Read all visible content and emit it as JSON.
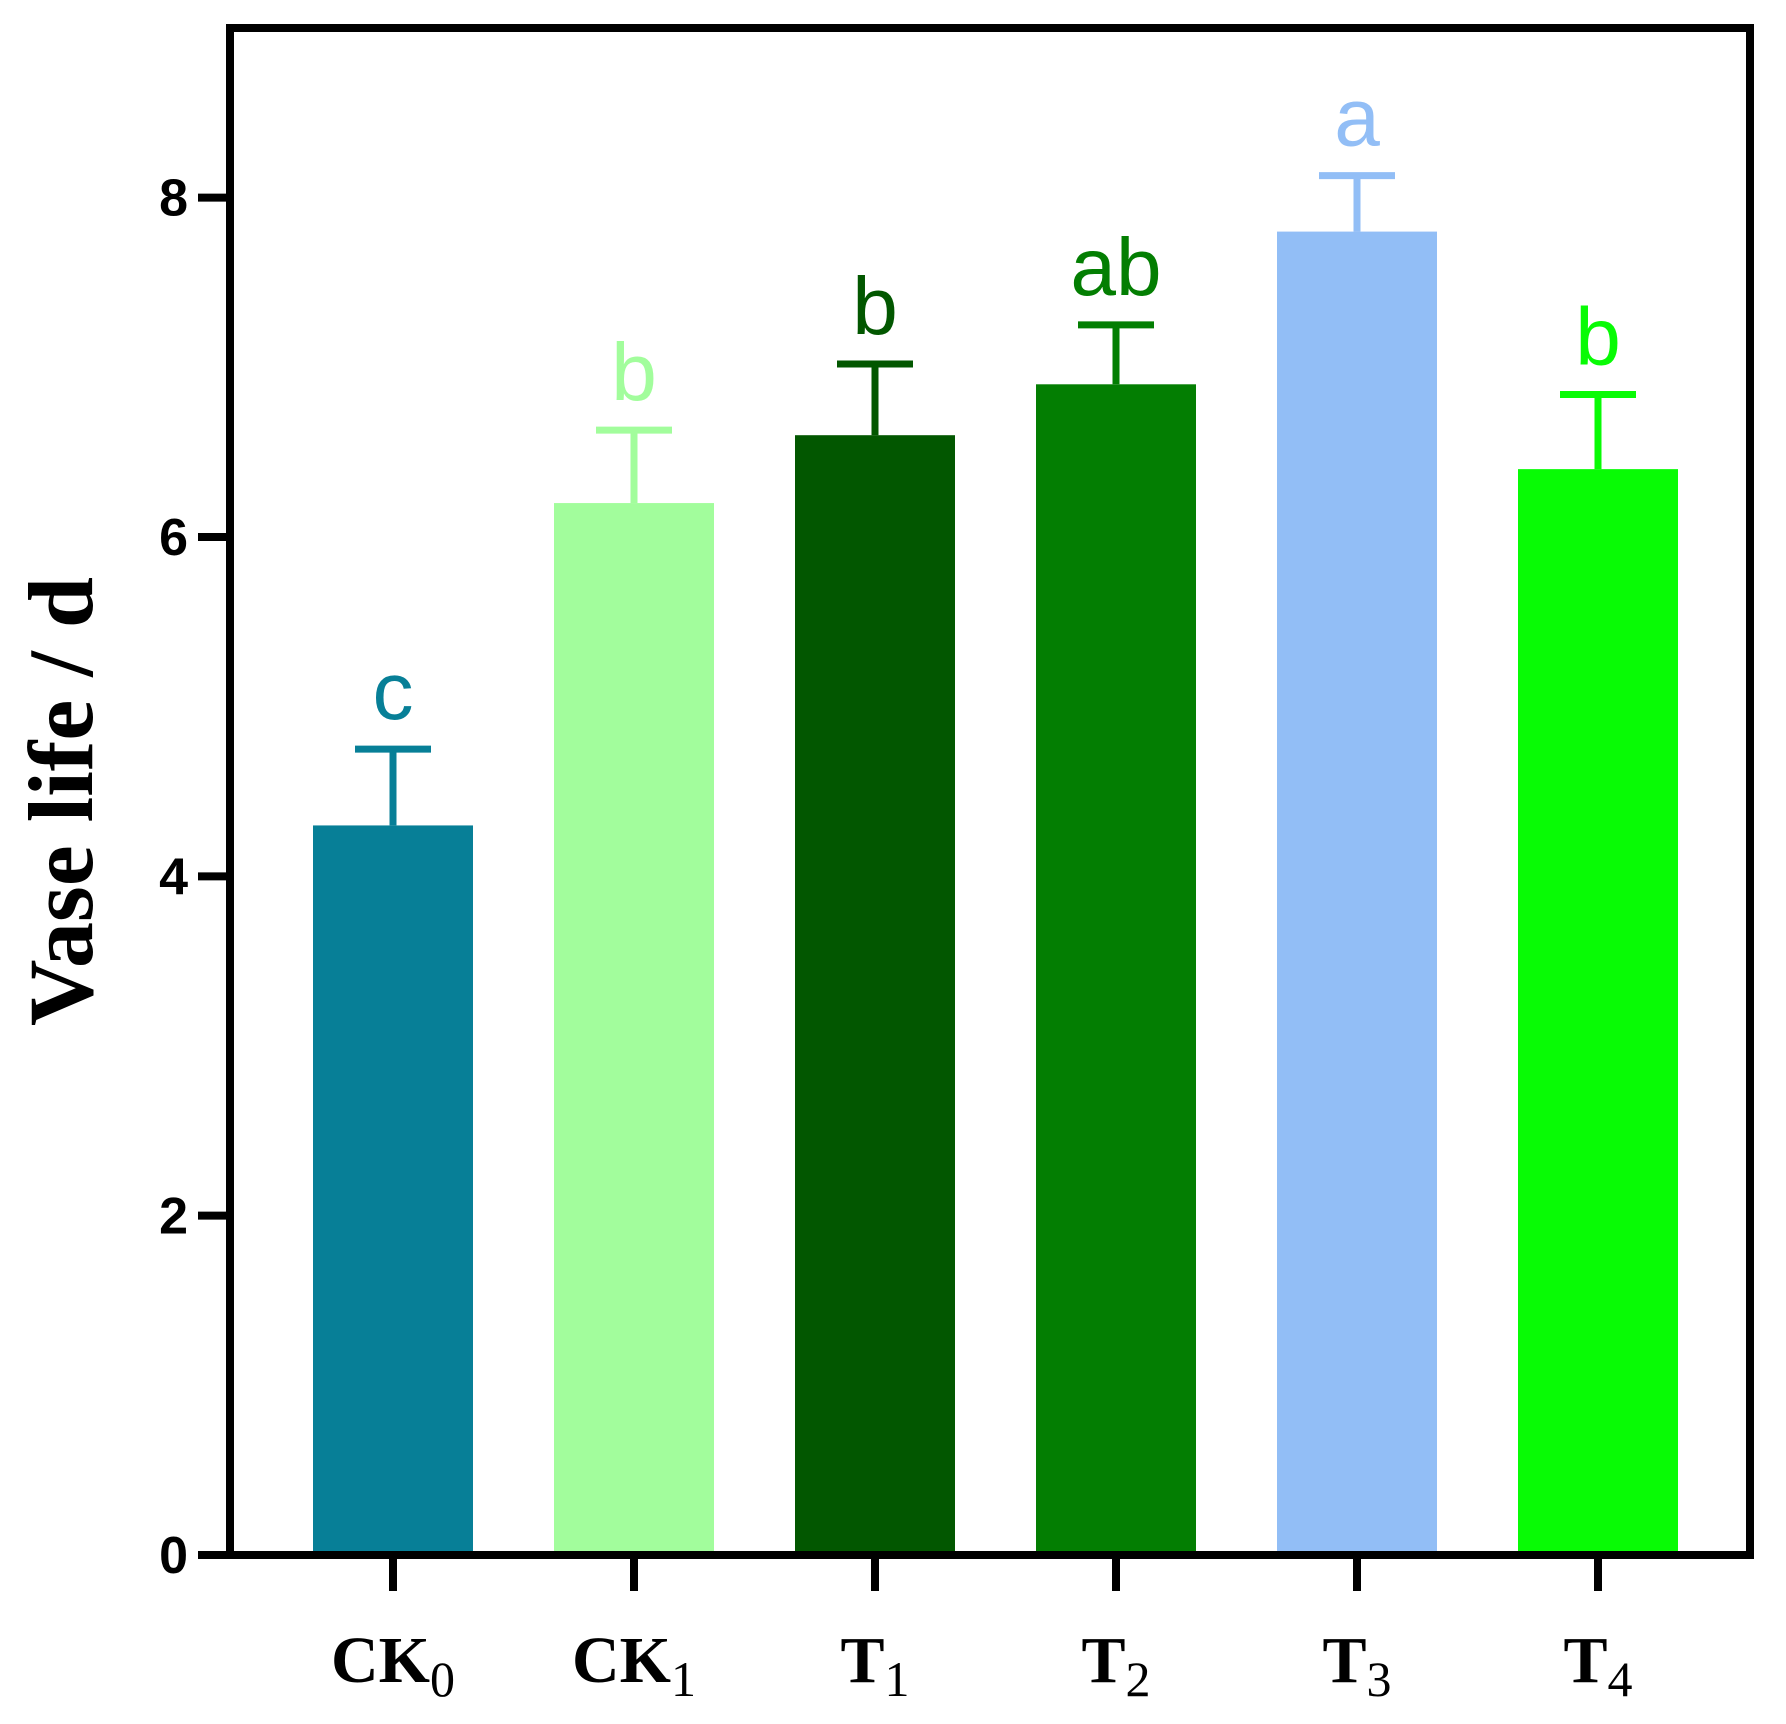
{
  "chart_data": {
    "type": "bar",
    "ylabel": "Vase life / d",
    "xlabel": "",
    "title": "",
    "ylim": [
      0,
      9
    ],
    "yticks": [
      0,
      2,
      4,
      6,
      8
    ],
    "grid": false,
    "bars": [
      {
        "label_main": "CK",
        "label_sub": "0",
        "value": 4.3,
        "error": 0.45,
        "letter": "c",
        "color": "#077f97"
      },
      {
        "label_main": "CK",
        "label_sub": "1",
        "value": 6.2,
        "error": 0.43,
        "letter": "b",
        "color": "#a2fd9c"
      },
      {
        "label_main": "T",
        "label_sub": "1",
        "value": 6.6,
        "error": 0.42,
        "letter": "b",
        "color": "#025700"
      },
      {
        "label_main": "T",
        "label_sub": "2",
        "value": 6.9,
        "error": 0.35,
        "letter": "ab",
        "color": "#037e02"
      },
      {
        "label_main": "T",
        "label_sub": "3",
        "value": 7.8,
        "error": 0.33,
        "letter": "a",
        "color": "#92bef6"
      },
      {
        "label_main": "T",
        "label_sub": "4",
        "value": 6.4,
        "error": 0.44,
        "letter": "b",
        "color": "#08fb05"
      }
    ]
  }
}
